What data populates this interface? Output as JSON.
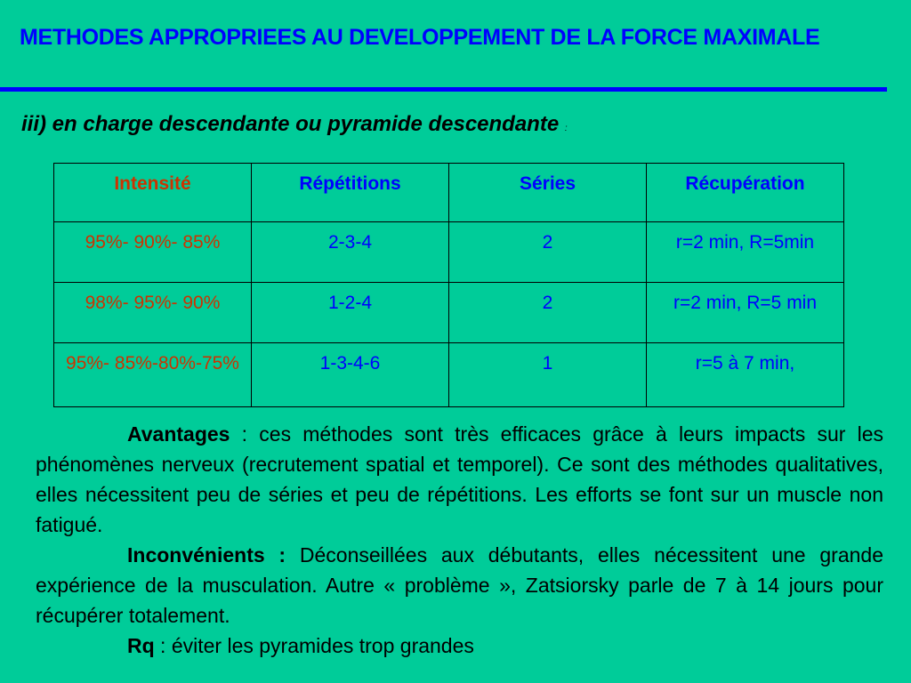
{
  "title": "METHODES APPROPRIEES AU DEVELOPPEMENT DE LA FORCE MAXIMALE",
  "subtitle": "iii) en charge descendante ou pyramide descendante",
  "subtitle_colon": ":",
  "table": {
    "headers": [
      "Intensité",
      "Répétitions",
      "Séries",
      "Récupération"
    ],
    "rows": [
      [
        "95%- 90%- 85%",
        "2-3-4",
        "2",
        "r=2 min, R=5min"
      ],
      [
        "98%- 95%- 90%",
        "1-2-4",
        "2",
        "r=2 min, R=5 min"
      ],
      [
        "95%- 85%-80%-75%",
        "1-3-4-6",
        "1",
        "r=5 à 7 min,"
      ]
    ]
  },
  "paragraphs": [
    {
      "label": "Avantages",
      "text": " : ces méthodes sont très efficaces grâce à leurs impacts sur les phénomènes nerveux (recrutement spatial et temporel). Ce sont des méthodes qualitatives, elles nécessitent peu de séries et peu de répétitions. Les efforts se font sur un muscle non fatigué."
    },
    {
      "label": "Inconvénients :",
      "text": " Déconseillées aux débutants, elles nécessitent une grande expérience de la musculation. Autre « problème », Zatsiorsky parle de 7 à 14 jours pour récupérer totalement."
    },
    {
      "label": "Rq",
      "text": " : éviter les pyramides trop grandes"
    }
  ],
  "colors": {
    "background": "#00cc99",
    "title": "#0000ff",
    "intensity": "#cc3300",
    "values": "#0000ff"
  }
}
